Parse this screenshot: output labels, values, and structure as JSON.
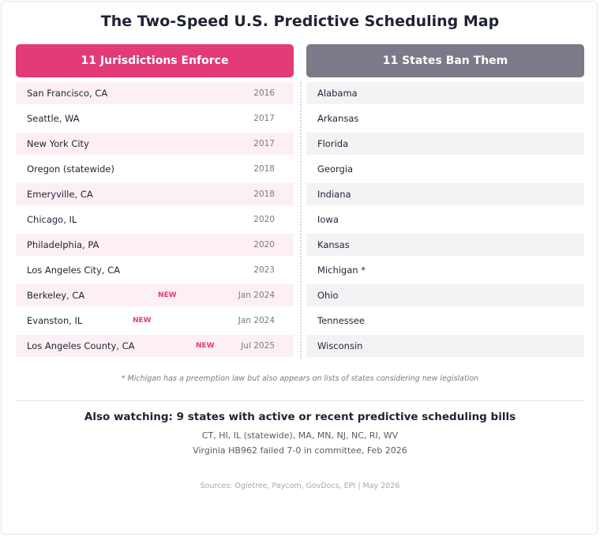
{
  "title": "The Two-Speed U.S. Predictive Scheduling Map",
  "enforce": {
    "header": "11 Jurisdictions Enforce",
    "new_label": "NEW",
    "items": [
      {
        "name": "San Francisco, CA",
        "year": "2016",
        "new": false
      },
      {
        "name": "Seattle, WA",
        "year": "2017",
        "new": false
      },
      {
        "name": "New York City",
        "year": "2017",
        "new": false
      },
      {
        "name": "Oregon (statewide)",
        "year": "2018",
        "new": false
      },
      {
        "name": "Emeryville, CA",
        "year": "2018",
        "new": false
      },
      {
        "name": "Chicago, IL",
        "year": "2020",
        "new": false
      },
      {
        "name": "Philadelphia, PA",
        "year": "2020",
        "new": false
      },
      {
        "name": "Los Angeles City, CA",
        "year": "2023",
        "new": false
      },
      {
        "name": "Berkeley, CA",
        "year": "Jan 2024",
        "new": true
      },
      {
        "name": "Evanston, IL",
        "year": "Jan 2024",
        "new": true
      },
      {
        "name": "Los Angeles County, CA",
        "year": "Jul 2025",
        "new": true
      }
    ]
  },
  "ban": {
    "header": "11 States Ban Them",
    "items": [
      "Alabama",
      "Arkansas",
      "Florida",
      "Georgia",
      "Indiana",
      "Iowa",
      "Kansas",
      "Michigan *",
      "Ohio",
      "Tennessee",
      "Wisconsin"
    ]
  },
  "footnote": "* Michigan has a preemption law but also appears on lists of states considering new legislation",
  "watching": {
    "title": "Also watching: 9 states with active or recent predictive scheduling bills",
    "states": "CT, HI, IL (statewide), MA, MN, NJ, NC, RI, WV",
    "note": "Virginia HB962 failed 7-0 in committee, Feb 2026"
  },
  "sources": "Sources: Ogletree, Paycom, GovDocs, EPI | May 2026",
  "colors": {
    "enforce_accent": "#e23b78",
    "ban_accent": "#7a7a88"
  }
}
